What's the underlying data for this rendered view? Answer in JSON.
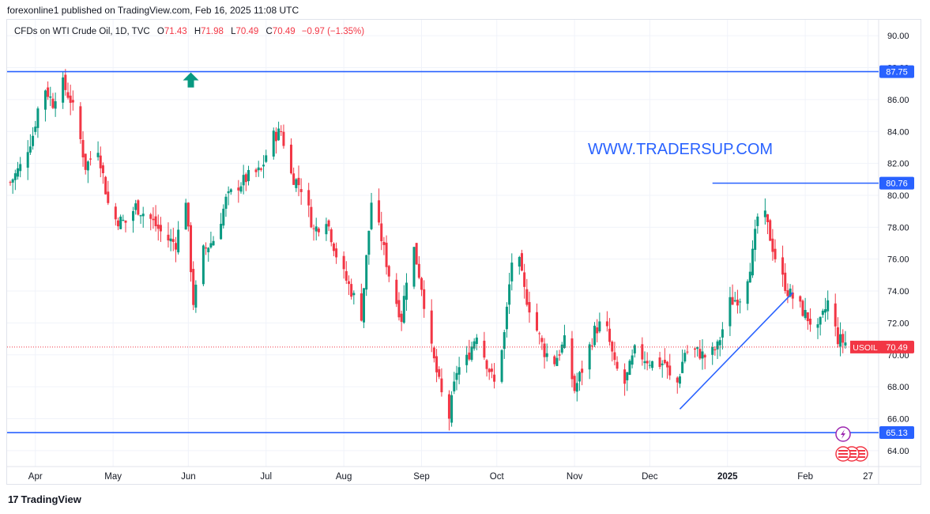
{
  "header": {
    "publisher": "forexonline1 published on TradingView.com, Feb 16, 2025 11:08 UTC"
  },
  "legend": {
    "symbol": "CFDs on WTI Crude Oil, 1D, TVC",
    "o_label": "O",
    "o": "71.43",
    "h_label": "H",
    "h": "71.98",
    "l_label": "L",
    "l": "70.49",
    "c_label": "C",
    "c": "70.49",
    "change": "−0.97 (−1.35%)"
  },
  "watermark": "WWW.TRADERSUP.COM",
  "footer": {
    "brand": "TradingView",
    "logo_text": "17"
  },
  "colors": {
    "up": "#089981",
    "down": "#f23645",
    "line": "#2962ff",
    "ticker": "#2962ff"
  },
  "chart_data": {
    "type": "candlestick",
    "ylim": [
      63,
      91
    ],
    "y_ticks": [
      "90.00",
      "88.00",
      "86.00",
      "84.00",
      "82.00",
      "80.00",
      "78.00",
      "76.00",
      "74.00",
      "72.00",
      "70.00",
      "68.00",
      "66.00",
      "64.00"
    ],
    "x_ticks": [
      "Apr",
      "May",
      "Jun",
      "Jul",
      "Aug",
      "Sep",
      "Oct",
      "Nov",
      "Dec",
      "2025",
      "Feb",
      "27"
    ],
    "x_tick_days": [
      10,
      41,
      71,
      102,
      133,
      164,
      194,
      225,
      255,
      286,
      317,
      342
    ],
    "x_range_days": [
      0,
      345
    ],
    "horizontal_lines": [
      {
        "label": "87.75",
        "value": 87.75,
        "full": true
      },
      {
        "label": "80.76",
        "value": 80.76,
        "full": false,
        "from_day": 280
      },
      {
        "label": "65.13",
        "value": 65.13,
        "full": true
      }
    ],
    "trend_line": {
      "from": {
        "day": 267,
        "value": 66.6
      },
      "to": {
        "day": 312,
        "value": 73.9
      }
    },
    "last_price": {
      "symbol": "USOIL",
      "label": "70.49",
      "value": 70.49
    },
    "up_arrow": {
      "day": 72,
      "value": 87.2
    },
    "keypoints": [
      [
        0,
        80.8
      ],
      [
        4,
        81.8
      ],
      [
        9,
        83.8
      ],
      [
        13,
        87.0
      ],
      [
        17,
        85.8
      ],
      [
        20,
        87.3
      ],
      [
        24,
        86.0
      ],
      [
        27,
        84.3
      ],
      [
        30,
        81.8
      ],
      [
        35,
        83.0
      ],
      [
        40,
        78.6
      ],
      [
        46,
        78.3
      ],
      [
        50,
        79.3
      ],
      [
        56,
        78.5
      ],
      [
        62,
        77.3
      ],
      [
        66,
        77.0
      ],
      [
        70,
        79.8
      ],
      [
        73,
        73.3
      ],
      [
        77,
        76.5
      ],
      [
        82,
        77.4
      ],
      [
        86,
        79.7
      ],
      [
        90,
        80.5
      ],
      [
        96,
        81.3
      ],
      [
        100,
        81.5
      ],
      [
        104,
        83.6
      ],
      [
        108,
        84.0
      ],
      [
        112,
        81.3
      ],
      [
        117,
        80.3
      ],
      [
        121,
        77.8
      ],
      [
        126,
        78.6
      ],
      [
        131,
        75.7
      ],
      [
        136,
        74.0
      ],
      [
        140,
        72.5
      ],
      [
        144,
        79.6
      ],
      [
        148,
        77.3
      ],
      [
        152,
        74.3
      ],
      [
        156,
        72.3
      ],
      [
        160,
        77.4
      ],
      [
        164,
        74.3
      ],
      [
        168,
        70.3
      ],
      [
        172,
        67.5
      ],
      [
        175,
        66.1
      ],
      [
        178,
        69.0
      ],
      [
        182,
        69.7
      ],
      [
        186,
        71.4
      ],
      [
        190,
        69.5
      ],
      [
        193,
        68.2
      ],
      [
        197,
        71.3
      ],
      [
        201,
        77.4
      ],
      [
        205,
        74.0
      ],
      [
        209,
        72.0
      ],
      [
        213,
        70.2
      ],
      [
        217,
        69.6
      ],
      [
        221,
        70.8
      ],
      [
        225,
        67.8
      ],
      [
        229,
        69.5
      ],
      [
        233,
        71.5
      ],
      [
        237,
        72.2
      ],
      [
        241,
        69.3
      ],
      [
        245,
        68.2
      ],
      [
        249,
        70.2
      ],
      [
        253,
        69.8
      ],
      [
        257,
        69.4
      ],
      [
        261,
        69.5
      ],
      [
        265,
        67.6
      ],
      [
        269,
        70.2
      ],
      [
        274,
        70.2
      ],
      [
        278,
        69.8
      ],
      [
        282,
        70.5
      ],
      [
        287,
        73.3
      ],
      [
        292,
        73.7
      ],
      [
        296,
        76.3
      ],
      [
        299,
        79.8
      ],
      [
        302,
        78.0
      ],
      [
        306,
        75.5
      ],
      [
        310,
        74.0
      ],
      [
        314,
        73.2
      ],
      [
        318,
        72.3
      ],
      [
        322,
        71.5
      ],
      [
        326,
        73.3
      ],
      [
        330,
        71.0
      ],
      [
        334,
        70.7
      ],
      [
        335,
        70.49
      ]
    ]
  }
}
